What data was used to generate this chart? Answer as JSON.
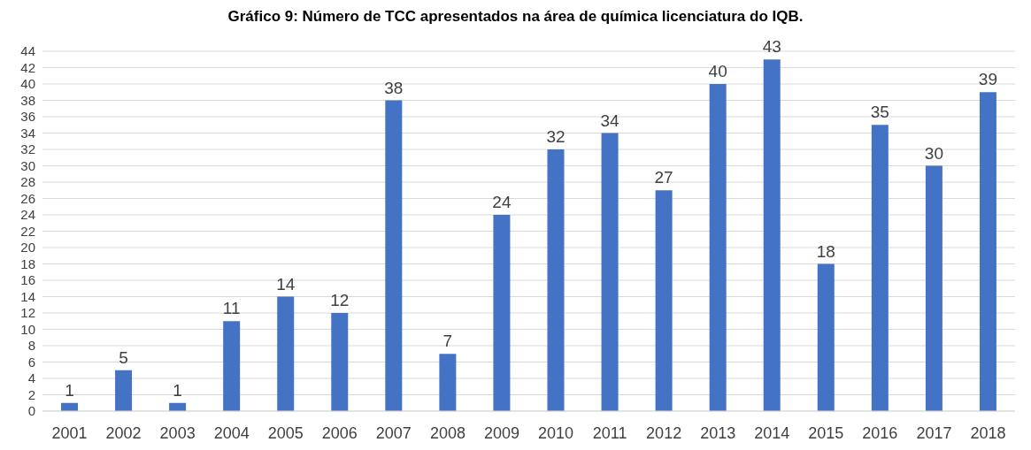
{
  "chart_data": {
    "type": "bar",
    "title": "Gráfico 9: Número de TCC apresentados na área de química licenciatura do IQB.",
    "categories": [
      "2001",
      "2002",
      "2003",
      "2004",
      "2005",
      "2006",
      "2007",
      "2008",
      "2009",
      "2010",
      "2011",
      "2012",
      "2013",
      "2014",
      "2015",
      "2016",
      "2017",
      "2018"
    ],
    "values": [
      1,
      5,
      1,
      11,
      14,
      12,
      38,
      7,
      24,
      32,
      34,
      27,
      40,
      43,
      18,
      35,
      30,
      39
    ],
    "color": "#4472c4",
    "ylim": [
      0,
      44
    ],
    "yticks": [
      0,
      2,
      4,
      6,
      8,
      10,
      12,
      14,
      16,
      18,
      20,
      22,
      24,
      26,
      28,
      30,
      32,
      34,
      36,
      38,
      40,
      42,
      44
    ],
    "grid": "y",
    "data_labels": true
  }
}
